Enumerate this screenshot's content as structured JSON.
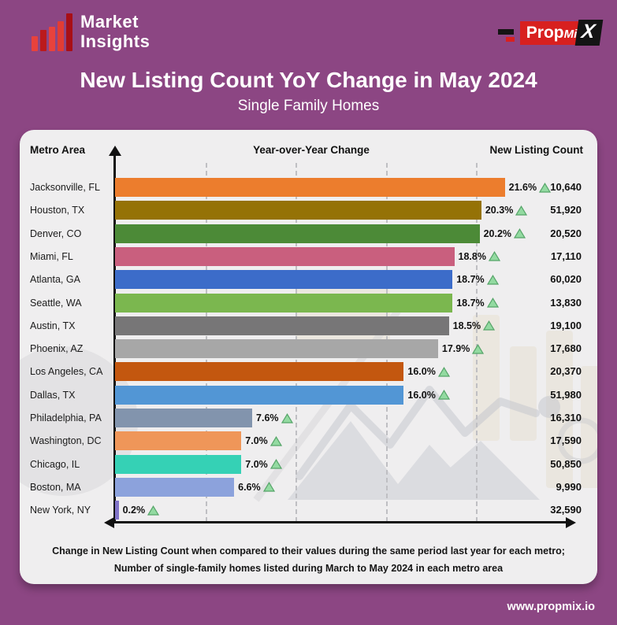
{
  "header": {
    "brand_name_line1": "Market",
    "brand_name_line2": "Insights",
    "brand_bar_colors": [
      "#e8423c",
      "#bb1a1c",
      "#e8423c",
      "#e23c33",
      "#a80f16"
    ],
    "brand_bar_heights": [
      19,
      27,
      31,
      38,
      48
    ],
    "propmix": {
      "prop": "Prop",
      "mi": "Mi",
      "x": "X"
    }
  },
  "title": "New Listing Count YoY Change in May 2024",
  "subtitle": "Single Family Homes",
  "table_headers": {
    "metro": "Metro Area",
    "yoy": "Year-over-Year Change",
    "count": "New Listing Count"
  },
  "footer": {
    "note_line1": "Change in New Listing Count when compared to their values during the same period last year for each metro;",
    "note_line2": "Number of single-family homes listed during March to May 2024 in each metro area",
    "website": "www.propmix.io"
  },
  "chart_data": {
    "type": "bar",
    "orientation": "horizontal",
    "title": "New Listing Count YoY Change in May 2024",
    "subtitle": "Single Family Homes",
    "categories": [
      "Jacksonville, FL",
      "Houston, TX",
      "Denver, CO",
      "Miami, FL",
      "Atlanta, GA",
      "Seattle, WA",
      "Austin, TX",
      "Phoenix, AZ",
      "Los Angeles, CA",
      "Dallas, TX",
      "Philadelphia, PA",
      "Washington, DC",
      "Chicago, IL",
      "Boston, MA",
      "New York, NY"
    ],
    "series": [
      {
        "name": "Year-over-Year Change (%)",
        "values": [
          21.6,
          20.3,
          20.2,
          18.8,
          18.7,
          18.7,
          18.5,
          17.9,
          16.0,
          16.0,
          7.6,
          7.0,
          7.0,
          6.6,
          0.2
        ]
      },
      {
        "name": "New Listing Count",
        "values": [
          10640,
          51920,
          20520,
          17110,
          60020,
          13830,
          19100,
          17680,
          20370,
          51980,
          16310,
          17590,
          50850,
          9990,
          32590
        ]
      }
    ],
    "bar_colors": [
      "#ec7d2d",
      "#957206",
      "#4c8a37",
      "#c95f7e",
      "#3c6cc9",
      "#7bb74f",
      "#777677",
      "#a7a7a7",
      "#c3570f",
      "#5296d5",
      "#8294ad",
      "#ef9659",
      "#35d1b5",
      "#8ca2dc",
      "#8073c8"
    ],
    "xlim": [
      0,
      22.5
    ],
    "gridlines_pct": [
      5,
      10,
      15,
      20
    ],
    "grid": true,
    "legend": false,
    "trend_icon": "up-triangle",
    "trend_fill": "#93daa1",
    "trend_stroke": "#55a468"
  },
  "colors": {
    "page_bg": "#8c4683",
    "panel_bg": "#efeeef",
    "accent_red": "#d8201f",
    "axis": "#111111"
  }
}
